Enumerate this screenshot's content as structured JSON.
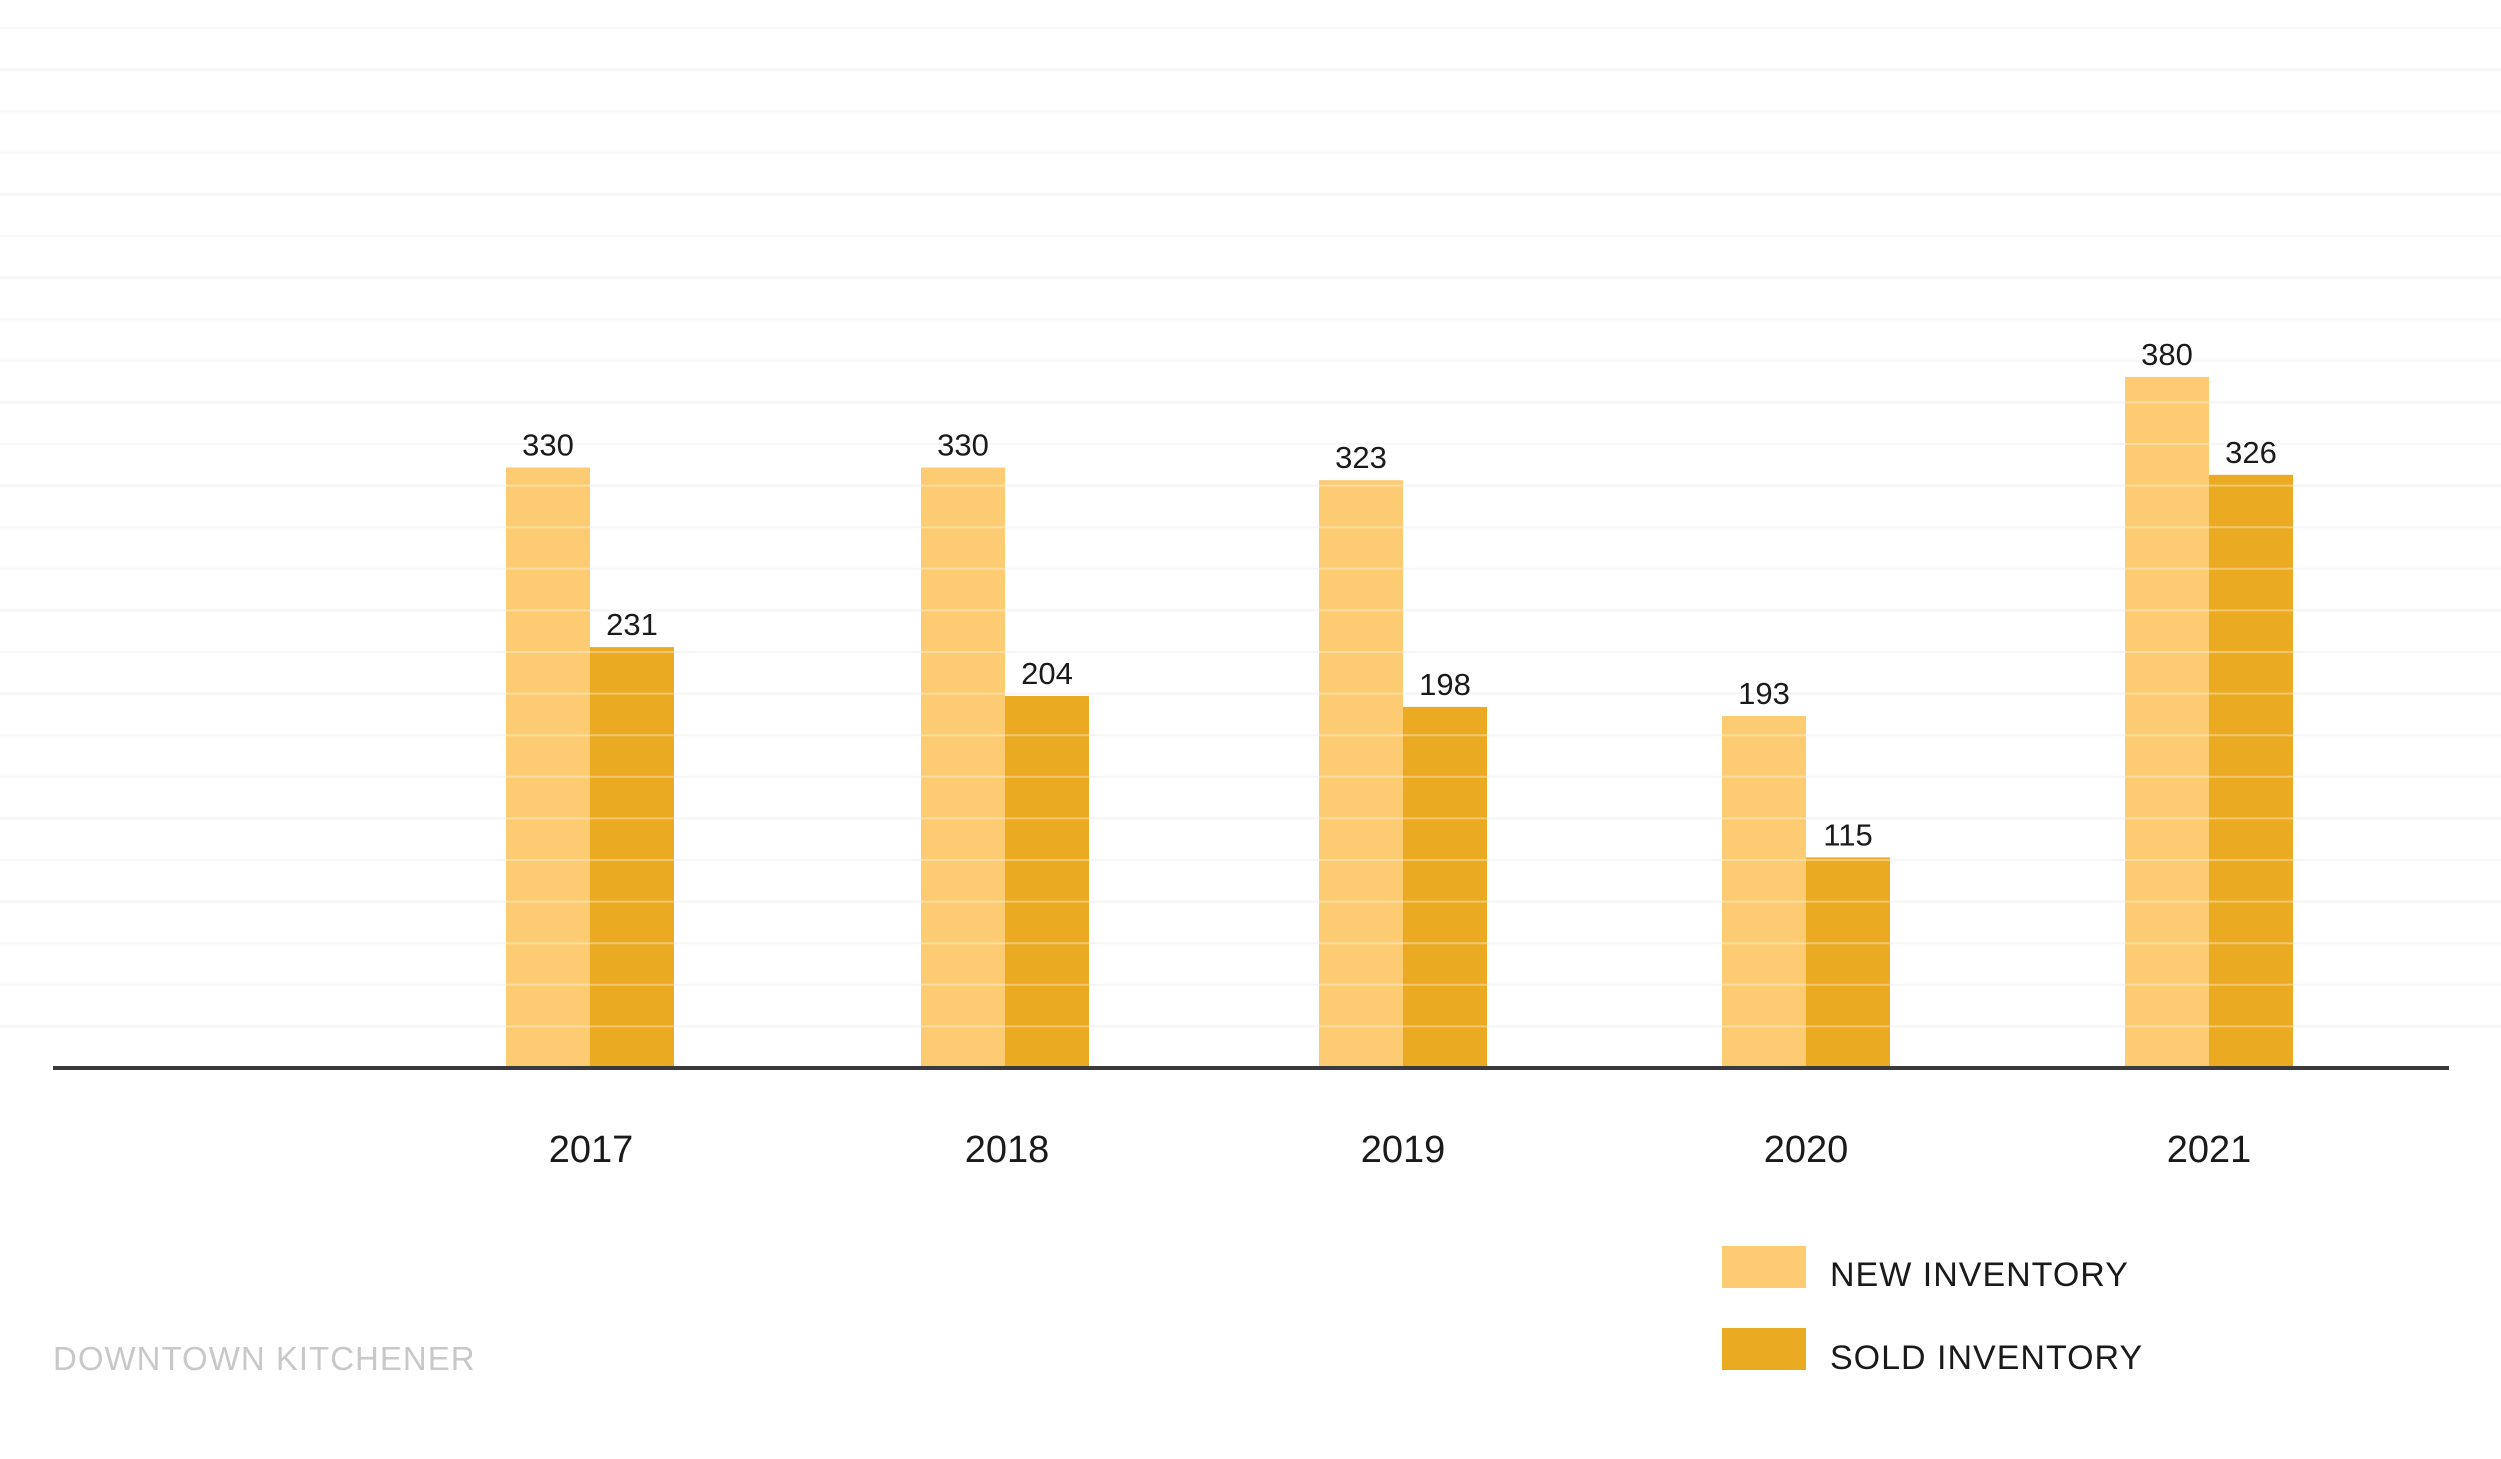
{
  "chart_data": {
    "type": "bar",
    "categories": [
      "2017",
      "2018",
      "2019",
      "2020",
      "2021"
    ],
    "series": [
      {
        "name": "NEW INVENTORY",
        "values": [
          330,
          330,
          323,
          193,
          380
        ],
        "color": "#FCCB72"
      },
      {
        "name": "SOLD INVENTORY",
        "values": [
          231,
          204,
          198,
          115,
          326
        ],
        "color": "#EAAB22"
      }
    ],
    "title": "",
    "xlabel": "",
    "ylabel": "",
    "ylim": [
      0,
      500
    ],
    "grid": true,
    "legend": "bottom-right",
    "annotations": [
      "DOWNTOWN KITCHENER"
    ]
  },
  "colors": {
    "gridline": "#f1f1f1",
    "axis": "#3a3a3a",
    "background": "#ffffff"
  }
}
